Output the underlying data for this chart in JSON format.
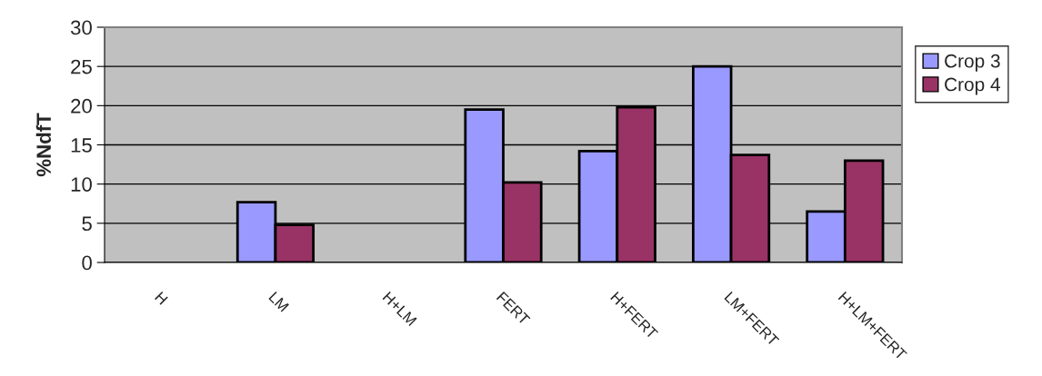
{
  "chart_data": {
    "type": "bar",
    "ylabel": "%NdfT",
    "categories": [
      "H",
      "LM",
      "H+LM",
      "FERT",
      "H+FERT",
      "LM+FERT",
      "H+LM+FERT"
    ],
    "series": [
      {
        "name": "Crop 3",
        "color": "#9999ff",
        "values": [
          null,
          7.7,
          null,
          19.5,
          14.2,
          25.0,
          6.5
        ]
      },
      {
        "name": "Crop 4",
        "color": "#993366",
        "values": [
          null,
          4.8,
          null,
          10.2,
          19.8,
          13.7,
          13.0
        ]
      }
    ],
    "ylim": [
      0,
      30
    ],
    "yticks": [
      0,
      5,
      10,
      15,
      20,
      25,
      30
    ],
    "grid": "y",
    "legend": "right"
  }
}
